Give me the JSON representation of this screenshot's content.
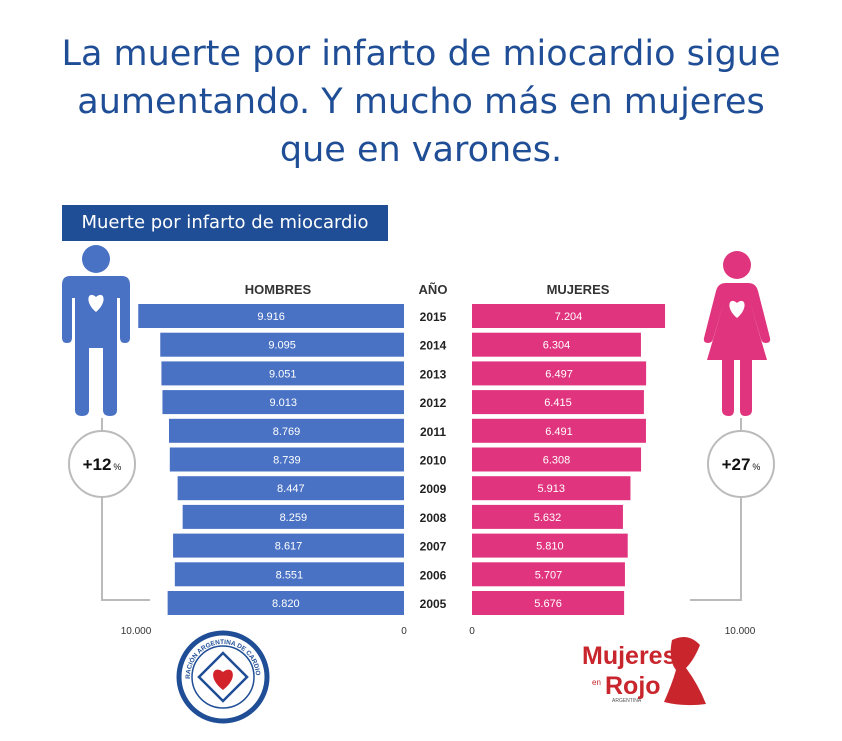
{
  "headline": {
    "line1": "La muerte por infarto de miocardio sigue",
    "line2": "aumentando. Y mucho más en mujeres",
    "line3": "que en varones."
  },
  "subtitle": "Muerte por infarto de miocardio",
  "colors": {
    "title": "#1f4e96",
    "men": "#4a72c4",
    "women": "#e0357e",
    "line": "#bbbbbb"
  },
  "icons": {
    "men": "man-heart-icon",
    "women": "woman-heart-icon"
  },
  "chart_data": {
    "type": "bar",
    "layout": "population-pyramid",
    "categories": [
      "2015",
      "2014",
      "2013",
      "2012",
      "2011",
      "2010",
      "2009",
      "2008",
      "2007",
      "2006",
      "2005"
    ],
    "category_header": "AÑO",
    "series": [
      {
        "name": "HOMBRES",
        "values": [
          9916,
          9095,
          9051,
          9013,
          8769,
          8739,
          8447,
          8259,
          8617,
          8551,
          8820
        ],
        "labels": [
          "9.916",
          "9.095",
          "9.051",
          "9.013",
          "8.769",
          "8.739",
          "8.447",
          "8.259",
          "8.617",
          "8.551",
          "8.820"
        ]
      },
      {
        "name": "MUJERES",
        "values": [
          7204,
          6304,
          6497,
          6415,
          6491,
          6308,
          5913,
          5632,
          5810,
          5707,
          5676
        ],
        "labels": [
          "7.204",
          "6.304",
          "6.497",
          "6.415",
          "6.491",
          "6.308",
          "5.913",
          "5.632",
          "5.810",
          "5.707",
          "5.676"
        ]
      }
    ],
    "xlim": [
      0,
      10000
    ],
    "ticks": {
      "men_max": "10.000",
      "men_zero": "0",
      "women_zero": "0",
      "women_max": "10.000"
    },
    "annotations": {
      "men_change": "+12",
      "women_change": "+27",
      "unit": "%"
    }
  },
  "logos": {
    "left": {
      "text": "FEDERACIÓN ARGENTINA DE CARDIOLOGÍA"
    },
    "right": {
      "line1": "Mujeres",
      "line2": "Rojo",
      "small": "en",
      "tag": "ARGENTINA"
    }
  }
}
